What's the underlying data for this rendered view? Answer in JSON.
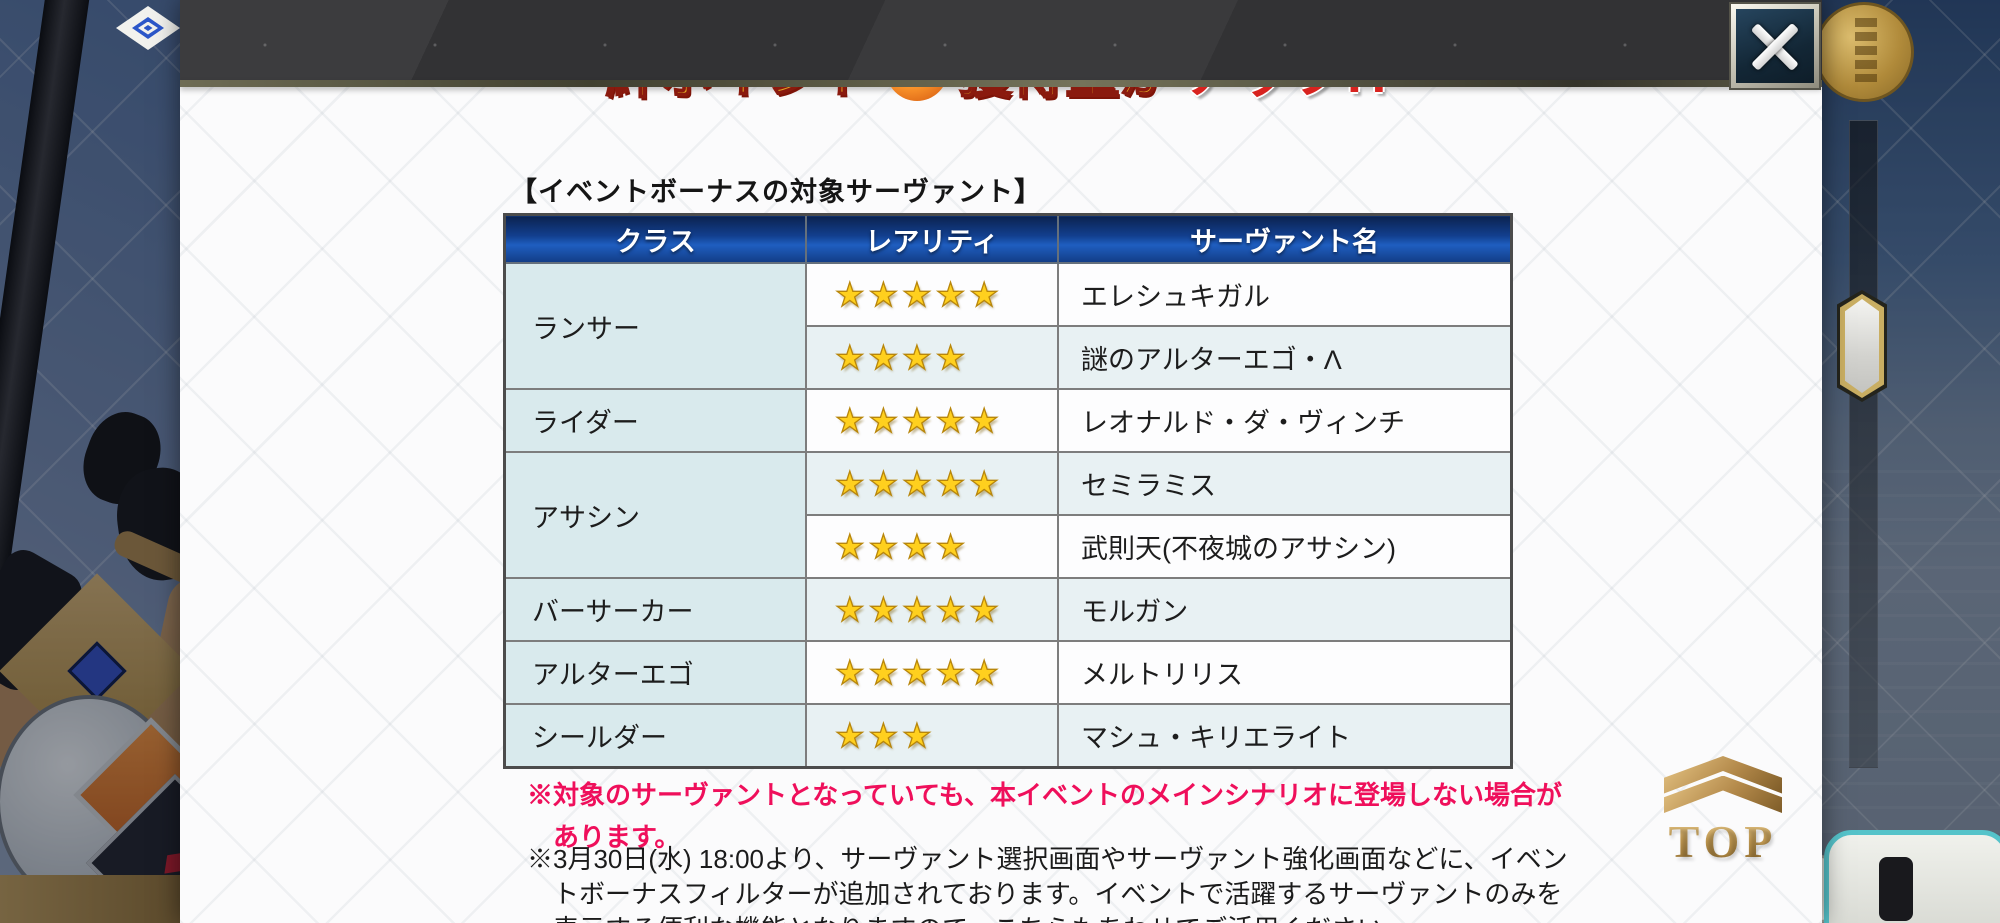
{
  "modal": {
    "banner": {
      "segment_left": "絆ポイント",
      "segment_mid": "獲得量が",
      "segment_right": "アップ!?"
    },
    "heading": "【イベントボーナスの対象サーヴァント】",
    "table": {
      "headers": [
        "クラス",
        "レアリティ",
        "サーヴァント名"
      ],
      "star_glyph": "★",
      "groups": [
        {
          "class_name": "ランサー",
          "entries": [
            {
              "stars": 5,
              "name": "エレシュキガル"
            },
            {
              "stars": 4,
              "name": "謎のアルターエゴ・Λ"
            }
          ]
        },
        {
          "class_name": "ライダー",
          "entries": [
            {
              "stars": 5,
              "name": "レオナルド・ダ・ヴィンチ"
            }
          ]
        },
        {
          "class_name": "アサシン",
          "entries": [
            {
              "stars": 5,
              "name": "セミラミス"
            },
            {
              "stars": 4,
              "name": "武則天(不夜城のアサシン)"
            }
          ]
        },
        {
          "class_name": "バーサーカー",
          "entries": [
            {
              "stars": 5,
              "name": "モルガン"
            }
          ]
        },
        {
          "class_name": "アルターエゴ",
          "entries": [
            {
              "stars": 5,
              "name": "メルトリリス"
            }
          ]
        },
        {
          "class_name": "シールダー",
          "entries": [
            {
              "stars": 3,
              "name": "マシュ・キリエライト"
            }
          ]
        }
      ]
    },
    "notes": {
      "warning_lines": [
        "※対象のサーヴァントとなっていても、本イベントのメインシナリオに登場しない場合が",
        "あります。"
      ],
      "info_lines": [
        "※3月30日(水) 18:00より、サーヴァント選択画面やサーヴァント強化画面などに、イベン",
        "トボーナスフィルターが追加されております。イベントで活躍するサーヴァントのみを",
        "表示する便利な機能となりますので、こちらもあわせてご活用ください"
      ]
    },
    "top_button_label": "TOP"
  },
  "colors": {
    "accent_red": "#ef0f5b",
    "table_header_blue": "#1f5ec0",
    "star_gold": "#ffd01e",
    "class_cell_bg": "#d9eaed",
    "alt_row_bg": "#e8f1f3"
  }
}
